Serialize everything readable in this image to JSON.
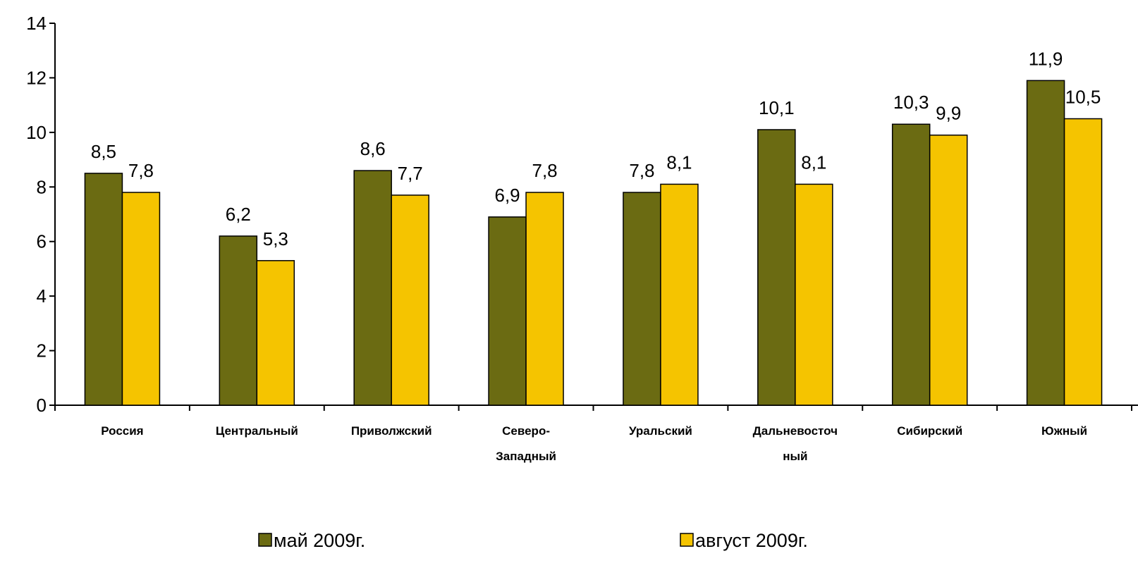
{
  "chart_data": {
    "type": "bar",
    "title": "",
    "xlabel": "",
    "ylabel": "",
    "ylim": [
      0,
      14
    ],
    "yticks": [
      0,
      2,
      4,
      6,
      8,
      10,
      12,
      14
    ],
    "grid": false,
    "legend_position": "bottom",
    "decimal_separator": ",",
    "categories": [
      [
        "Россия"
      ],
      [
        "Центральный"
      ],
      [
        "Приволжский"
      ],
      [
        "Северо-",
        "Западный"
      ],
      [
        "Уральский"
      ],
      [
        "Дальневосточ",
        "ный"
      ],
      [
        "Сибирский"
      ],
      [
        "Южный"
      ]
    ],
    "series": [
      {
        "name": "май 2009г.",
        "color": "#6b6b12",
        "values": [
          8.5,
          6.2,
          8.6,
          6.9,
          7.8,
          10.1,
          10.3,
          11.9
        ]
      },
      {
        "name": "август 2009г.",
        "color": "#f5c400",
        "values": [
          7.8,
          5.3,
          7.7,
          7.8,
          8.1,
          8.1,
          9.9,
          10.5
        ]
      }
    ]
  }
}
